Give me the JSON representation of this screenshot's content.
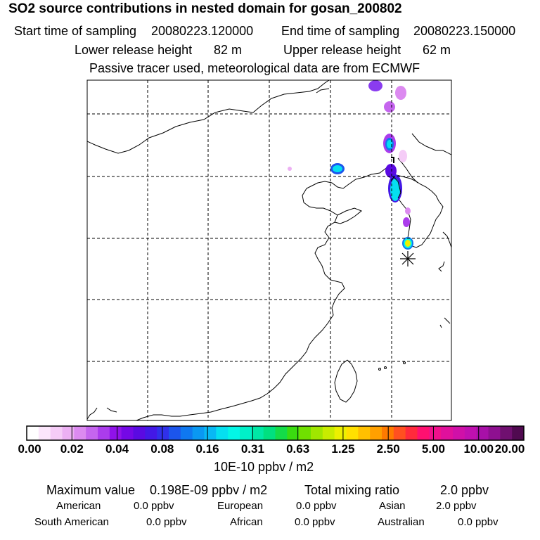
{
  "header": {
    "title": "SO2 source contributions in nested domain for gosan_200802",
    "start_label": "Start time of sampling",
    "start_value": "20080223.120000",
    "end_label": "End time of sampling",
    "end_value": "20080223.150000",
    "lower_label": "Lower release height",
    "lower_value": "82 m",
    "upper_label": "Upper release height",
    "upper_value": "62 m",
    "note": "Passive tracer used, meteorological data are from ECMWF"
  },
  "colorbar": {
    "labels": [
      "0.00",
      "0.02",
      "0.04",
      "0.08",
      "0.16",
      "0.31",
      "0.63",
      "1.25",
      "2.50",
      "5.00",
      "10.00",
      "20.00"
    ],
    "colors": [
      "#ffffff",
      "#fbe6fb",
      "#f5ccf7",
      "#ecb0f3",
      "#dc8af0",
      "#c565ee",
      "#ab3cec",
      "#9012ea",
      "#7408e6",
      "#5a0ae2",
      "#4318e6",
      "#3030ea",
      "#1c55ec",
      "#0f78f0",
      "#0a98f2",
      "#08b8f4",
      "#05dff0",
      "#03f6e6",
      "#00f0c8",
      "#00e8a6",
      "#00e080",
      "#14dc48",
      "#3adc10",
      "#70e000",
      "#a0e600",
      "#c8ec00",
      "#ecf000",
      "#ffe000",
      "#ffc000",
      "#ffa000",
      "#ff7a00",
      "#ff5020",
      "#ff2a3c",
      "#ff1070",
      "#f0108c",
      "#e0109c",
      "#d010a8",
      "#c010b0",
      "#a810a8",
      "#8e1090",
      "#701070",
      "#500a50"
    ],
    "units": "10E-10 ppbv / m2"
  },
  "summary": {
    "max_label": "Maximum value",
    "max_value": "0.198E-09 ppbv / m2",
    "total_label": "Total mixing ratio",
    "total_value": "2.0 ppbv",
    "regions": [
      {
        "name": "American",
        "value": "0.0 ppbv"
      },
      {
        "name": "European",
        "value": "0.0 ppbv"
      },
      {
        "name": "Asian",
        "value": "2.0 ppbv"
      },
      {
        "name": "South American",
        "value": "0.0 ppbv"
      },
      {
        "name": "African",
        "value": "0.0 ppbv"
      },
      {
        "name": "Australian",
        "value": "0.0 ppbv"
      }
    ]
  },
  "map": {
    "receptor_marker": "asterisk"
  }
}
